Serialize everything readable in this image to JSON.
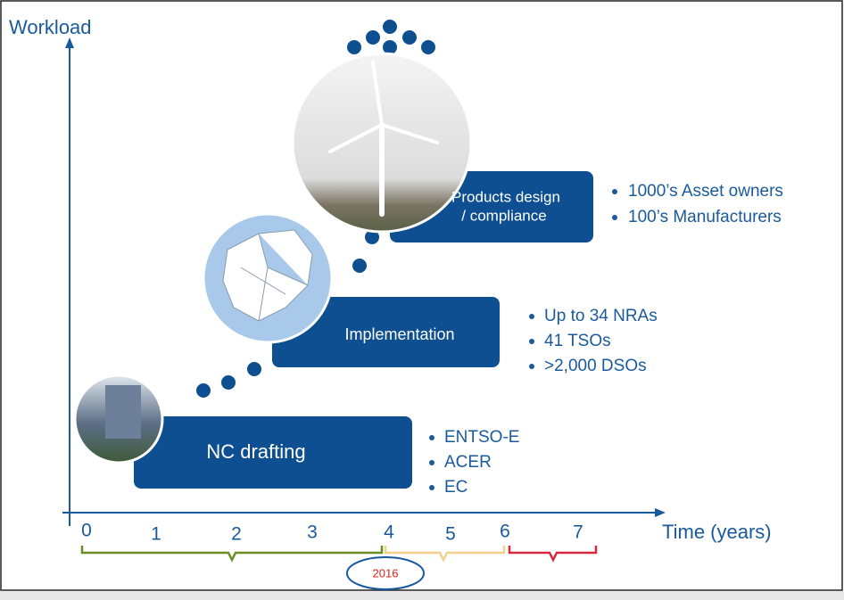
{
  "axis": {
    "y_label": "Workload",
    "x_label": "Time (years)",
    "ticks": [
      0,
      1,
      2,
      3,
      4,
      5,
      6,
      7
    ]
  },
  "highlight": "2016",
  "stages": [
    {
      "label": "NC drafting",
      "bullets": [
        "ENTSO-E",
        "ACER",
        "EC"
      ]
    },
    {
      "label": "Implementation",
      "bullets": [
        "Up to 34 NRAs",
        "41 TSOs",
        ">2,000 DSOs"
      ]
    },
    {
      "label_lines": [
        "Products design",
        "/ compliance"
      ],
      "bullets": [
        "1000’s Asset owners",
        "100’s Manufacturers"
      ]
    }
  ]
}
